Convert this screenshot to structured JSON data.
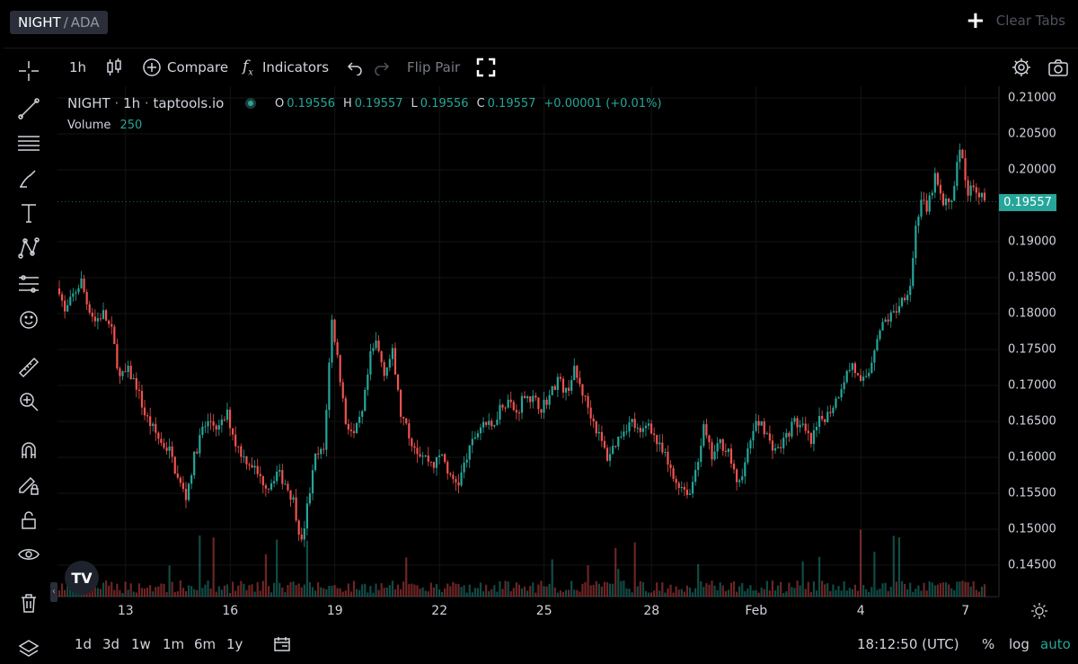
{
  "tab": {
    "base": "NIGHT",
    "separator": "/",
    "quote": "ADA"
  },
  "clear_tabs_label": "Clear Tabs",
  "toolbar": {
    "interval": "1h",
    "compare": "Compare",
    "indicators": "Indicators",
    "flip_pair": "Flip Pair"
  },
  "legend": {
    "symbol": "NIGHT",
    "interval": "1h",
    "source": "taptools.io",
    "o_key": "O",
    "o_val": "0.19556",
    "h_key": "H",
    "h_val": "0.19557",
    "l_key": "L",
    "l_val": "0.19556",
    "c_key": "C",
    "c_val": "0.19557",
    "change": "+0.00001 (+0.01%)",
    "volume_label": "Volume",
    "volume_val": "250"
  },
  "last_price": "0.19557",
  "bottom": {
    "ranges": [
      "1d",
      "3d",
      "1w",
      "1m",
      "6m",
      "1y"
    ],
    "time": "18:12:50 (UTC)",
    "percent": "%",
    "log": "log",
    "auto": "auto"
  },
  "colors": {
    "up": "#26a69a",
    "down": "#ef5350",
    "accent": "#26a69a",
    "background": "#000000"
  },
  "icons": [
    "crosshair-icon",
    "trend-line-icon",
    "fib-icon",
    "brush-icon",
    "text-icon",
    "pattern-icon",
    "forecast-icon",
    "emoji-icon",
    "ruler-icon",
    "zoom-in-icon",
    "magnet-icon",
    "lock-drawing-icon",
    "unlock-icon",
    "eye-icon",
    "trash-icon",
    "layers-icon",
    "candles-icon",
    "fx-icon",
    "undo-icon",
    "redo-icon",
    "fullscreen-icon",
    "settings-icon",
    "camera-icon",
    "calendar-range-icon",
    "sun-icon",
    "tradingview-logo"
  ],
  "chart_data": {
    "type": "candlestick",
    "y_ticks": [
      "0.21000",
      "0.20500",
      "0.20000",
      "0.19557",
      "0.19000",
      "0.18500",
      "0.18000",
      "0.17500",
      "0.17000",
      "0.16500",
      "0.16000",
      "0.15500",
      "0.15000",
      "0.14500"
    ],
    "x_ticks": [
      "13",
      "16",
      "19",
      "22",
      "25",
      "28",
      "Feb",
      "4",
      "7"
    ],
    "ylim": [
      0.1415,
      0.2115
    ],
    "close_path": [
      [
        0,
        0.1835
      ],
      [
        2,
        0.18
      ],
      [
        5,
        0.1825
      ],
      [
        8,
        0.1845
      ],
      [
        10,
        0.1815
      ],
      [
        13,
        0.179
      ],
      [
        16,
        0.18
      ],
      [
        19,
        0.1775
      ],
      [
        22,
        0.171
      ],
      [
        25,
        0.172
      ],
      [
        28,
        0.17
      ],
      [
        31,
        0.166
      ],
      [
        34,
        0.164
      ],
      [
        37,
        0.162
      ],
      [
        40,
        0.161
      ],
      [
        43,
        0.157
      ],
      [
        46,
        0.1545
      ],
      [
        49,
        0.16
      ],
      [
        52,
        0.164
      ],
      [
        55,
        0.165
      ],
      [
        58,
        0.164
      ],
      [
        61,
        0.166
      ],
      [
        64,
        0.162
      ],
      [
        67,
        0.16
      ],
      [
        70,
        0.159
      ],
      [
        73,
        0.157
      ],
      [
        76,
        0.156
      ],
      [
        79,
        0.158
      ],
      [
        82,
        0.1565
      ],
      [
        85,
        0.154
      ],
      [
        88,
        0.148
      ],
      [
        90,
        0.153
      ],
      [
        93,
        0.16
      ],
      [
        96,
        0.161
      ],
      [
        99,
        0.179
      ],
      [
        101,
        0.174
      ],
      [
        104,
        0.165
      ],
      [
        107,
        0.163
      ],
      [
        110,
        0.166
      ],
      [
        113,
        0.174
      ],
      [
        115,
        0.176
      ],
      [
        118,
        0.172
      ],
      [
        121,
        0.1745
      ],
      [
        124,
        0.166
      ],
      [
        127,
        0.163
      ],
      [
        130,
        0.161
      ],
      [
        133,
        0.16
      ],
      [
        136,
        0.159
      ],
      [
        139,
        0.1605
      ],
      [
        142,
        0.157
      ],
      [
        145,
        0.1565
      ],
      [
        148,
        0.16
      ],
      [
        151,
        0.163
      ],
      [
        154,
        0.165
      ],
      [
        157,
        0.164
      ],
      [
        160,
        0.167
      ],
      [
        163,
        0.168
      ],
      [
        166,
        0.166
      ],
      [
        169,
        0.169
      ],
      [
        172,
        0.168
      ],
      [
        175,
        0.167
      ],
      [
        178,
        0.1685
      ],
      [
        181,
        0.171
      ],
      [
        184,
        0.169
      ],
      [
        187,
        0.172
      ],
      [
        190,
        0.169
      ],
      [
        193,
        0.166
      ],
      [
        196,
        0.163
      ],
      [
        199,
        0.16
      ],
      [
        202,
        0.162
      ],
      [
        205,
        0.164
      ],
      [
        208,
        0.165
      ],
      [
        211,
        0.163
      ],
      [
        214,
        0.165
      ],
      [
        217,
        0.162
      ],
      [
        220,
        0.16
      ],
      [
        223,
        0.157
      ],
      [
        226,
        0.156
      ],
      [
        229,
        0.155
      ],
      [
        232,
        0.16
      ],
      [
        234,
        0.164
      ],
      [
        237,
        0.16
      ],
      [
        240,
        0.162
      ],
      [
        243,
        0.161
      ],
      [
        246,
        0.156
      ],
      [
        249,
        0.159
      ],
      [
        252,
        0.164
      ],
      [
        255,
        0.165
      ],
      [
        258,
        0.162
      ],
      [
        261,
        0.161
      ],
      [
        264,
        0.163
      ],
      [
        267,
        0.165
      ],
      [
        270,
        0.164
      ],
      [
        273,
        0.162
      ],
      [
        276,
        0.165
      ],
      [
        279,
        0.166
      ],
      [
        282,
        0.168
      ],
      [
        285,
        0.171
      ],
      [
        288,
        0.173
      ],
      [
        291,
        0.17
      ],
      [
        294,
        0.172
      ],
      [
        297,
        0.177
      ],
      [
        300,
        0.179
      ],
      [
        303,
        0.18
      ],
      [
        306,
        0.182
      ],
      [
        309,
        0.184
      ],
      [
        311,
        0.192
      ],
      [
        313,
        0.196
      ],
      [
        315,
        0.194
      ],
      [
        318,
        0.199
      ],
      [
        321,
        0.195
      ],
      [
        324,
        0.196
      ],
      [
        327,
        0.203
      ],
      [
        330,
        0.197
      ],
      [
        333,
        0.1975
      ],
      [
        336,
        0.1956
      ]
    ],
    "volume": "low-amplitude bars with occasional spikes"
  }
}
